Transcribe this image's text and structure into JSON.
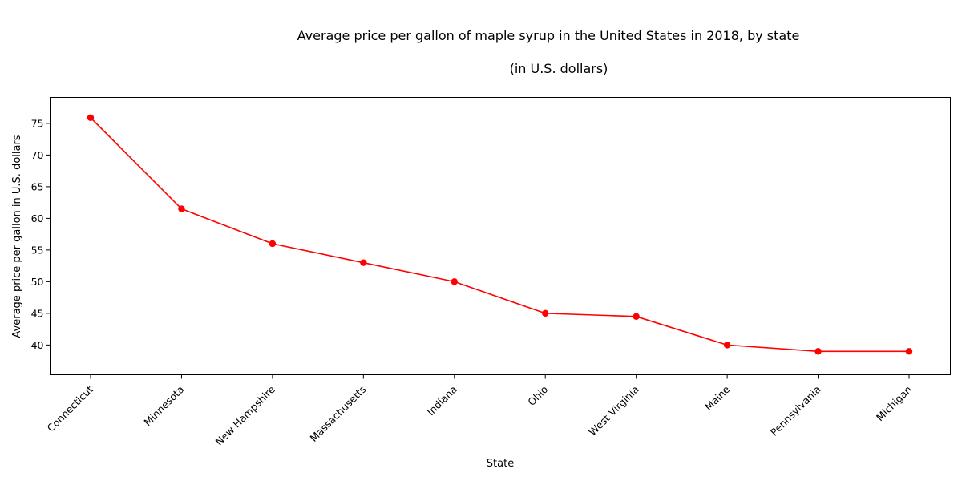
{
  "chart_data": {
    "type": "line",
    "title": "Average price per gallon of maple syrup in the United States in 2018, by state",
    "subtitle": "(in U.S. dollars)",
    "xlabel": "State",
    "ylabel": "Average price per gallon in U.S. dollars",
    "categories": [
      "Connecticut",
      "Minnesota",
      "New Hampshire",
      "Massachusetts",
      "Indiana",
      "Ohio",
      "West Virginia",
      "Maine",
      "Pennsylvania",
      "Michigan"
    ],
    "series": [
      {
        "values": [
          75.9,
          61.5,
          56.0,
          53.0,
          50.0,
          45.0,
          44.5,
          40.0,
          39.0,
          39.0
        ],
        "color": "#ff0000",
        "marker": "circle"
      }
    ],
    "ylim": [
      35.3,
      79.1
    ],
    "yticks": [
      40,
      45,
      50,
      55,
      60,
      65,
      70,
      75
    ],
    "grid": false,
    "legend": false
  }
}
